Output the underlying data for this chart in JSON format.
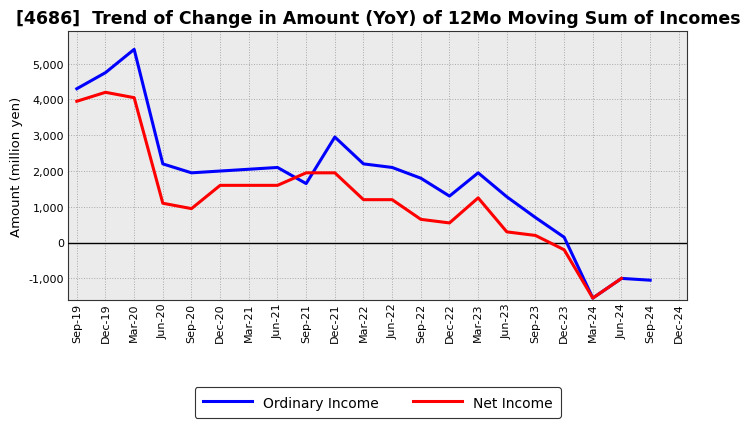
{
  "title": "[4686]  Trend of Change in Amount (YoY) of 12Mo Moving Sum of Incomes",
  "ylabel": "Amount (million yen)",
  "x_labels": [
    "Sep-19",
    "Dec-19",
    "Mar-20",
    "Jun-20",
    "Sep-20",
    "Dec-20",
    "Mar-21",
    "Jun-21",
    "Sep-21",
    "Dec-21",
    "Mar-22",
    "Jun-22",
    "Sep-22",
    "Dec-22",
    "Mar-23",
    "Jun-23",
    "Sep-23",
    "Dec-23",
    "Mar-24",
    "Jun-24",
    "Sep-24",
    "Dec-24"
  ],
  "ordinary_income": [
    4300,
    4750,
    5400,
    2200,
    1950,
    2000,
    2050,
    2100,
    1650,
    2950,
    2200,
    2100,
    1800,
    1300,
    1950,
    1280,
    700,
    150,
    -1550,
    -1000,
    -1050,
    null
  ],
  "net_income": [
    3950,
    4200,
    4050,
    1100,
    950,
    1600,
    1600,
    1600,
    1950,
    1950,
    1200,
    1200,
    650,
    550,
    1250,
    300,
    200,
    -200,
    -1550,
    -1000,
    null,
    null
  ],
  "ordinary_income_color": "#0000ff",
  "net_income_color": "#ff0000",
  "ylim": [
    -1600,
    5900
  ],
  "yticks": [
    -1000,
    0,
    1000,
    2000,
    3000,
    4000,
    5000
  ],
  "background_color": "#ebebeb",
  "grid_color": "#aaaaaa",
  "title_fontsize": 12.5,
  "axis_label_fontsize": 9.5,
  "tick_fontsize": 8,
  "legend_labels": [
    "Ordinary Income",
    "Net Income"
  ],
  "line_width": 2.2,
  "legend_fontsize": 10,
  "legend_handlelength": 3.5
}
